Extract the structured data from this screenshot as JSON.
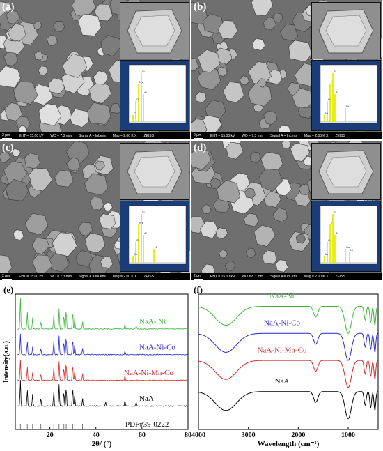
{
  "sem_panels": [
    {
      "letter": "(a)",
      "scale": "2 μm",
      "eht": "EHT = 15.00 kV",
      "wd": "WD = 7.3 mm",
      "signal": "Signal A = InLens",
      "mag": "Mag = 2.00 K X",
      "brand": "ZEISS",
      "eds_peaks": [
        "Na",
        "Si",
        "Al",
        "O",
        "C"
      ]
    },
    {
      "letter": "(b)",
      "scale": "2 μm",
      "eht": "EHT = 15.00 kV",
      "wd": "WD = 7.3 mm",
      "signal": "Signal A = InLens",
      "mag": "Mag = 2.00 K X",
      "brand": "ZEISS",
      "eds_peaks": [
        "Na",
        "Si",
        "Al",
        "O",
        "Ni",
        "Ni"
      ]
    },
    {
      "letter": "(c)",
      "scale": "2 μm",
      "eht": "EHT = 15.00 kV",
      "wd": "WD = 7.3 mm",
      "signal": "Signal A = InLens",
      "mag": "Mag = 2.00 K X",
      "brand": "ZEISS",
      "eds_peaks": [
        "Na",
        "Si",
        "Al",
        "O",
        "Co",
        "Ni"
      ]
    },
    {
      "letter": "(d)",
      "scale": "2 μm",
      "eht": "EHT = 15.00 kV",
      "wd": "WD = 8.3 mm",
      "signal": "Signal A = InLens",
      "mag": "Mag = 2.00 K X",
      "brand": "ZEISS",
      "eds_peaks": [
        "Na",
        "Si",
        "Al",
        "O",
        "Mn",
        "Co",
        "Ni"
      ]
    }
  ],
  "chart_data": [
    {
      "panel": "(e)",
      "type": "line",
      "xlabel": "2θ/ (°)",
      "ylabel": "Intensity(a.u.)",
      "xlim": [
        5,
        80
      ],
      "xticks": [
        20,
        40,
        60,
        80
      ],
      "grid": false,
      "series": [
        {
          "name": "NaA- Ni",
          "color": "#3cb83c",
          "offset": 0.74,
          "peaks": [
            [
              7.2,
              0.24
            ],
            [
              10.2,
              0.13
            ],
            [
              12.5,
              0.08
            ],
            [
              16.1,
              0.06
            ],
            [
              21.7,
              0.12
            ],
            [
              24.0,
              0.15
            ],
            [
              26.1,
              0.11
            ],
            [
              27.1,
              0.15
            ],
            [
              29.9,
              0.13
            ],
            [
              30.8,
              0.08
            ],
            [
              34.2,
              0.06
            ],
            [
              52.6,
              0.04
            ],
            [
              57.5,
              0.03
            ]
          ]
        },
        {
          "name": "NaA-Ni-Co",
          "color": "#2a2ad4",
          "offset": 0.55,
          "peaks": [
            [
              7.2,
              0.16
            ],
            [
              10.2,
              0.1
            ],
            [
              12.5,
              0.06
            ],
            [
              16.1,
              0.05
            ],
            [
              21.7,
              0.11
            ],
            [
              24.0,
              0.14
            ],
            [
              26.1,
              0.1
            ],
            [
              27.1,
              0.14
            ],
            [
              29.9,
              0.12
            ],
            [
              30.8,
              0.07
            ],
            [
              34.2,
              0.05
            ],
            [
              52.6,
              0.03
            ]
          ]
        },
        {
          "name": "NaA-Ni-Mn-Co",
          "color": "#d42a2a",
          "offset": 0.36,
          "peaks": [
            [
              7.2,
              0.16
            ],
            [
              10.2,
              0.1
            ],
            [
              12.5,
              0.06
            ],
            [
              16.1,
              0.05
            ],
            [
              21.7,
              0.11
            ],
            [
              24.0,
              0.14
            ],
            [
              26.1,
              0.1
            ],
            [
              27.1,
              0.14
            ],
            [
              29.9,
              0.12
            ],
            [
              30.8,
              0.07
            ],
            [
              34.2,
              0.05
            ],
            [
              52.6,
              0.03
            ]
          ]
        },
        {
          "name": "NaA",
          "color": "#000000",
          "offset": 0.17,
          "peaks": [
            [
              7.2,
              0.2
            ],
            [
              10.2,
              0.12
            ],
            [
              12.5,
              0.09
            ],
            [
              16.1,
              0.06
            ],
            [
              21.7,
              0.12
            ],
            [
              24.0,
              0.16
            ],
            [
              26.1,
              0.11
            ],
            [
              27.1,
              0.15
            ],
            [
              29.9,
              0.14
            ],
            [
              30.8,
              0.08
            ],
            [
              34.2,
              0.06
            ],
            [
              44.2,
              0.03
            ],
            [
              52.6,
              0.04
            ],
            [
              57.5,
              0.03
            ]
          ]
        }
      ],
      "reference": {
        "name": "PDF#39-0222",
        "sticks": [
          7.2,
          10.2,
          12.5,
          16.1,
          21.7,
          24.0,
          26.1,
          27.1,
          29.9,
          30.8,
          34.2,
          52.6
        ]
      }
    },
    {
      "panel": "(f)",
      "type": "line",
      "xlabel": "Wavelength (cm⁻¹)",
      "ylabel": "",
      "xlim": [
        4000,
        400
      ],
      "xticks": [
        4000,
        3000,
        2000,
        1000
      ],
      "grid": false,
      "series": [
        {
          "name": "NaA-Ni",
          "color": "#3cb83c",
          "offset": 0.83
        },
        {
          "name": "NaA-Ni-Co",
          "color": "#2a2ad4",
          "offset": 0.63
        },
        {
          "name": "NaA-Ni-Mn-Co",
          "color": "#d42a2a",
          "offset": 0.43
        },
        {
          "name": "NaA",
          "color": "#000000",
          "offset": 0.2
        }
      ],
      "bands": [
        {
          "x": 3450,
          "depth": 0.14,
          "width": 300
        },
        {
          "x": 1650,
          "depth": 0.08,
          "width": 60
        },
        {
          "x": 1000,
          "depth": 0.2,
          "width": 90
        },
        {
          "x": 660,
          "depth": 0.1,
          "width": 30
        },
        {
          "x": 550,
          "depth": 0.12,
          "width": 25
        },
        {
          "x": 465,
          "depth": 0.14,
          "width": 25
        }
      ]
    }
  ]
}
